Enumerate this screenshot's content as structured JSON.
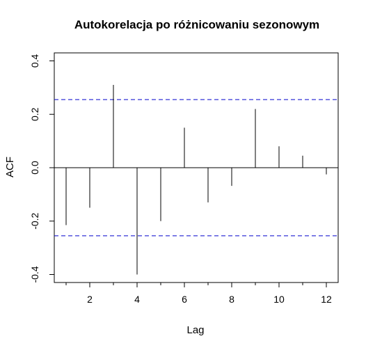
{
  "chart_data": {
    "type": "acf",
    "title": "Autokorelacja po różnicowaniu sezonowym",
    "xlabel": "Lag",
    "ylabel": "ACF",
    "xlim": [
      0.5,
      12.5
    ],
    "ylim": [
      -0.43,
      0.43
    ],
    "x_ticks": [
      2,
      4,
      6,
      8,
      10,
      12
    ],
    "x_minor_ticks": [
      1,
      3,
      5,
      7,
      9,
      11
    ],
    "y_ticks": [
      -0.4,
      -0.2,
      0.0,
      0.2,
      0.4
    ],
    "y_tick_labels": [
      "-0.4",
      "-0.2",
      "0.0",
      "0.2",
      "0.4"
    ],
    "lags": [
      1,
      2,
      3,
      4,
      5,
      6,
      7,
      8,
      9,
      10,
      11,
      12
    ],
    "values": [
      -0.215,
      -0.15,
      0.31,
      -0.4,
      -0.2,
      0.15,
      -0.13,
      -0.068,
      0.22,
      0.08,
      0.045,
      -0.025
    ],
    "confidence_bound": 0.255,
    "colors": {
      "bars": "#000000",
      "confidence": "#0000cc",
      "zero_line": "#000000",
      "frame": "#000000"
    },
    "grid": false,
    "legend": "none"
  }
}
